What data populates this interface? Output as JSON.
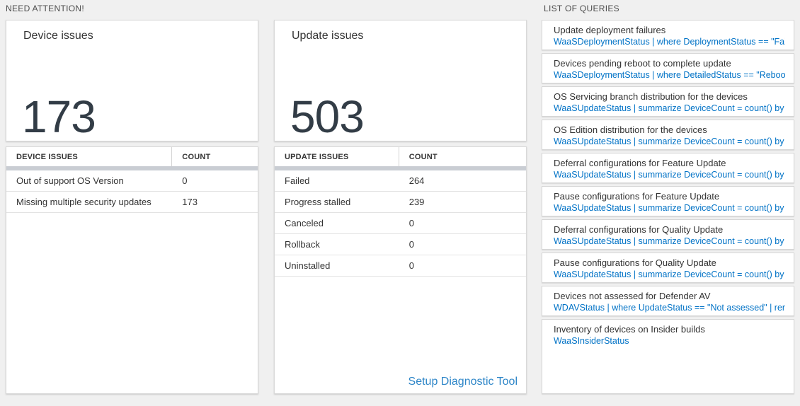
{
  "colors": {
    "page_background": "#f0f0f0",
    "tile_number": "#323c46",
    "query_blue": "#0072c6",
    "link_blue": "#2e86c8",
    "header_bar_gray": "#c9cdd3"
  },
  "need_attention": {
    "header": "NEED ATTENTION!",
    "device_card": {
      "title": "Device issues",
      "value": "173"
    },
    "device_table": {
      "columns": [
        "DEVICE ISSUES",
        "COUNT"
      ],
      "rows": [
        [
          "Out of support OS Version",
          "0"
        ],
        [
          "Missing multiple security updates",
          "173"
        ]
      ]
    },
    "update_card": {
      "title": "Update issues",
      "value": "503"
    },
    "update_table": {
      "columns": [
        "UPDATE ISSUES",
        "COUNT"
      ],
      "rows": [
        [
          "Failed",
          "264"
        ],
        [
          "Progress stalled",
          "239"
        ],
        [
          "Canceled",
          "0"
        ],
        [
          "Rollback",
          "0"
        ],
        [
          "Uninstalled",
          "0"
        ]
      ]
    },
    "diagnostic_link": "Setup Diagnostic Tool"
  },
  "queries": {
    "header": "LIST OF QUERIES",
    "items": [
      {
        "title": "Update deployment failures",
        "query": "WaaSDeploymentStatus | where DeploymentStatus == \"Failed\" |..."
      },
      {
        "title": "Devices pending reboot to complete update",
        "query": "WaaSDeploymentStatus | where DetailedStatus == \"Reboot pend..."
      },
      {
        "title": "OS Servicing branch distribution for the devices",
        "query": "WaaSUpdateStatus | summarize DeviceCount = count() by OSSer..."
      },
      {
        "title": "OS Edition distribution for the devices",
        "query": "WaaSUpdateStatus | summarize DeviceCount = count() by OSEdit..."
      },
      {
        "title": "Deferral configurations for Feature Update",
        "query": "WaaSUpdateStatus | summarize DeviceCount = count() by Featur..."
      },
      {
        "title": "Pause configurations for Feature Update",
        "query": "WaaSUpdateStatus | summarize DeviceCount = count() by Featur..."
      },
      {
        "title": "Deferral configurations for Quality Update",
        "query": "WaaSUpdateStatus | summarize DeviceCount = count() by Qualit..."
      },
      {
        "title": "Pause configurations for Quality Update",
        "query": "WaaSUpdateStatus | summarize DeviceCount = count() by Qualit..."
      },
      {
        "title": "Devices not assessed for Defender AV",
        "query": "WDAVStatus | where UpdateStatus == \"Not assessed\" | render ta..."
      },
      {
        "title": "Inventory of devices on Insider builds",
        "query": "WaaSInsiderStatus"
      }
    ]
  }
}
